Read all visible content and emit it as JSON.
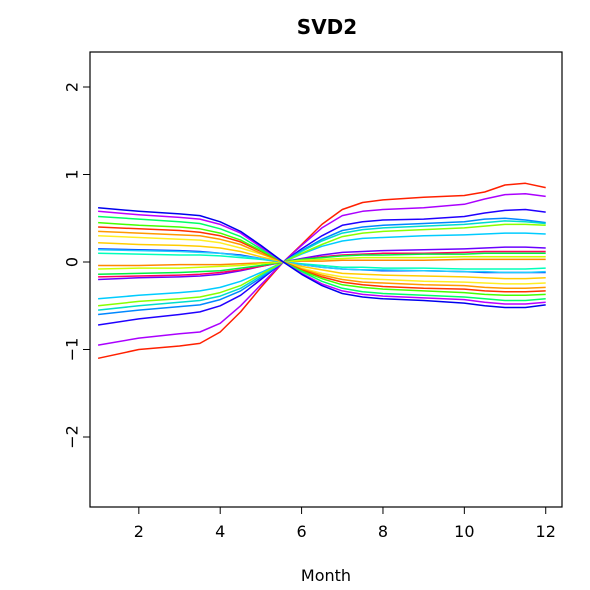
{
  "chart_data": {
    "type": "line",
    "title": "SVD2",
    "xlabel": "Month",
    "ylabel": "",
    "xlim": [
      0.8,
      12.4
    ],
    "ylim": [
      -2.8,
      2.4
    ],
    "xticks": [
      2,
      4,
      6,
      8,
      10,
      12
    ],
    "yticks": [
      -2,
      -1,
      0,
      1,
      2
    ],
    "xtick_labels": [
      "2",
      "4",
      "6",
      "8",
      "10",
      "12"
    ],
    "ytick_labels": [
      "−2",
      "−1",
      "0",
      "1",
      "2"
    ],
    "grid": false,
    "legend": "none",
    "x": [
      1,
      2,
      3,
      3.5,
      4,
      4.5,
      5,
      5.55,
      6,
      6.5,
      7,
      7.5,
      8,
      9,
      10,
      10.5,
      11,
      11.5,
      12
    ],
    "series": [
      {
        "color": "#ff2000",
        "values": [
          -1.1,
          -1.0,
          -0.96,
          -0.93,
          -0.8,
          -0.57,
          -0.29,
          0,
          0.2,
          0.43,
          0.6,
          0.68,
          0.71,
          0.74,
          0.76,
          0.8,
          0.88,
          0.9,
          0.85
        ]
      },
      {
        "color": "#aa00ff",
        "values": [
          -0.95,
          -0.87,
          -0.82,
          -0.8,
          -0.7,
          -0.5,
          -0.26,
          0,
          0.19,
          0.39,
          0.53,
          0.58,
          0.6,
          0.62,
          0.66,
          0.72,
          0.77,
          0.78,
          0.75
        ]
      },
      {
        "color": "#2000ff",
        "values": [
          -0.72,
          -0.65,
          -0.6,
          -0.57,
          -0.5,
          -0.38,
          -0.2,
          0,
          0.15,
          0.3,
          0.42,
          0.46,
          0.48,
          0.49,
          0.52,
          0.56,
          0.59,
          0.6,
          0.57
        ]
      },
      {
        "color": "#0088ff",
        "values": [
          -0.6,
          -0.55,
          -0.51,
          -0.49,
          -0.43,
          -0.33,
          -0.18,
          0,
          0.13,
          0.26,
          0.36,
          0.4,
          0.42,
          0.44,
          0.46,
          0.49,
          0.5,
          0.48,
          0.45
        ]
      },
      {
        "color": "#00ddcc",
        "values": [
          -0.55,
          -0.5,
          -0.46,
          -0.44,
          -0.39,
          -0.3,
          -0.16,
          0,
          0.12,
          0.24,
          0.33,
          0.37,
          0.39,
          0.41,
          0.43,
          0.45,
          0.47,
          0.46,
          0.44
        ]
      },
      {
        "color": "#00ccff",
        "values": [
          -0.42,
          -0.38,
          -0.35,
          -0.33,
          -0.29,
          -0.22,
          -0.12,
          0,
          0.09,
          0.18,
          0.24,
          0.27,
          0.28,
          0.3,
          0.31,
          0.32,
          0.33,
          0.33,
          0.32
        ]
      },
      {
        "color": "#88ff00",
        "values": [
          -0.5,
          -0.45,
          -0.42,
          -0.4,
          -0.35,
          -0.27,
          -0.14,
          0,
          0.1,
          0.2,
          0.29,
          0.33,
          0.35,
          0.37,
          0.39,
          0.41,
          0.43,
          0.43,
          0.42
        ]
      },
      {
        "color": "#6a00ff",
        "values": [
          -0.2,
          -0.18,
          -0.17,
          -0.16,
          -0.14,
          -0.1,
          -0.05,
          0,
          0.04,
          0.08,
          0.11,
          0.12,
          0.13,
          0.14,
          0.15,
          0.16,
          0.17,
          0.17,
          0.16
        ]
      },
      {
        "color": "#ff0060",
        "values": [
          -0.17,
          -0.16,
          -0.15,
          -0.14,
          -0.12,
          -0.09,
          -0.05,
          0,
          0.03,
          0.06,
          0.08,
          0.09,
          0.1,
          0.1,
          0.11,
          0.12,
          0.12,
          0.12,
          0.12
        ]
      },
      {
        "color": "#00ee44",
        "values": [
          -0.14,
          -0.13,
          -0.12,
          -0.11,
          -0.1,
          -0.07,
          -0.04,
          0,
          0.03,
          0.05,
          0.07,
          0.08,
          0.08,
          0.09,
          0.09,
          0.1,
          0.1,
          0.1,
          0.1
        ]
      },
      {
        "color": "#ff8800",
        "values": [
          -0.04,
          -0.04,
          -0.03,
          -0.03,
          -0.03,
          -0.02,
          -0.01,
          0,
          0.01,
          0.01,
          0.02,
          0.02,
          0.02,
          0.02,
          0.03,
          0.03,
          0.03,
          0.03,
          0.03
        ]
      },
      {
        "color": "#ccff00",
        "values": [
          -0.08,
          -0.07,
          -0.07,
          -0.06,
          -0.05,
          -0.04,
          -0.02,
          0,
          0.02,
          0.03,
          0.04,
          0.05,
          0.05,
          0.05,
          0.06,
          0.06,
          0.06,
          0.06,
          0.06
        ]
      },
      {
        "color": "#00ffbb",
        "values": [
          0.1,
          0.09,
          0.08,
          0.08,
          0.07,
          0.05,
          0.03,
          0,
          -0.02,
          -0.04,
          -0.06,
          -0.06,
          -0.07,
          -0.07,
          -0.08,
          -0.08,
          -0.08,
          -0.08,
          -0.07
        ]
      },
      {
        "color": "#0044ff",
        "values": [
          0.15,
          0.14,
          0.13,
          0.12,
          0.1,
          0.08,
          0.04,
          0,
          -0.03,
          -0.06,
          -0.08,
          -0.09,
          -0.1,
          -0.1,
          -0.11,
          -0.12,
          -0.12,
          -0.12,
          -0.12
        ]
      },
      {
        "color": "#22ccff",
        "values": [
          0.14,
          0.13,
          0.12,
          0.11,
          0.1,
          0.07,
          0.04,
          0,
          -0.03,
          -0.06,
          -0.08,
          -0.09,
          -0.09,
          -0.1,
          -0.11,
          -0.11,
          -0.12,
          -0.12,
          -0.11
        ]
      },
      {
        "color": "#ffcc00",
        "values": [
          0.22,
          0.2,
          0.19,
          0.18,
          0.16,
          0.12,
          0.06,
          0,
          -0.05,
          -0.09,
          -0.13,
          -0.14,
          -0.15,
          -0.16,
          -0.17,
          -0.18,
          -0.19,
          -0.19,
          -0.18
        ]
      },
      {
        "color": "#ffee22",
        "values": [
          0.3,
          0.28,
          0.26,
          0.25,
          0.22,
          0.16,
          0.09,
          0,
          -0.07,
          -0.13,
          -0.17,
          -0.19,
          -0.2,
          -0.22,
          -0.23,
          -0.24,
          -0.25,
          -0.25,
          -0.24
        ]
      },
      {
        "color": "#ff9900",
        "values": [
          0.35,
          0.33,
          0.31,
          0.3,
          0.26,
          0.2,
          0.1,
          0,
          -0.08,
          -0.15,
          -0.2,
          -0.23,
          -0.24,
          -0.26,
          -0.27,
          -0.29,
          -0.3,
          -0.3,
          -0.29
        ]
      },
      {
        "color": "#ff3300",
        "values": [
          0.4,
          0.38,
          0.36,
          0.34,
          0.3,
          0.23,
          0.12,
          0,
          -0.09,
          -0.17,
          -0.23,
          -0.26,
          -0.28,
          -0.3,
          -0.31,
          -0.33,
          -0.34,
          -0.34,
          -0.33
        ]
      },
      {
        "color": "#44ff00",
        "values": [
          0.45,
          0.42,
          0.4,
          0.38,
          0.33,
          0.25,
          0.13,
          0,
          -0.1,
          -0.19,
          -0.26,
          -0.29,
          -0.31,
          -0.33,
          -0.35,
          -0.37,
          -0.38,
          -0.38,
          -0.37
        ]
      },
      {
        "color": "#00ff66",
        "values": [
          0.52,
          0.49,
          0.46,
          0.44,
          0.38,
          0.29,
          0.15,
          0,
          -0.11,
          -0.22,
          -0.3,
          -0.34,
          -0.36,
          -0.38,
          -0.4,
          -0.42,
          -0.44,
          -0.44,
          -0.42
        ]
      },
      {
        "color": "#bb00ff",
        "values": [
          0.58,
          0.54,
          0.51,
          0.49,
          0.43,
          0.33,
          0.17,
          0,
          -0.13,
          -0.25,
          -0.33,
          -0.37,
          -0.39,
          -0.41,
          -0.43,
          -0.46,
          -0.48,
          -0.48,
          -0.46
        ]
      },
      {
        "color": "#0000ee",
        "values": [
          0.62,
          0.58,
          0.55,
          0.53,
          0.46,
          0.35,
          0.19,
          0,
          -0.14,
          -0.27,
          -0.36,
          -0.4,
          -0.42,
          -0.44,
          -0.47,
          -0.5,
          -0.52,
          -0.52,
          -0.49
        ]
      }
    ]
  }
}
